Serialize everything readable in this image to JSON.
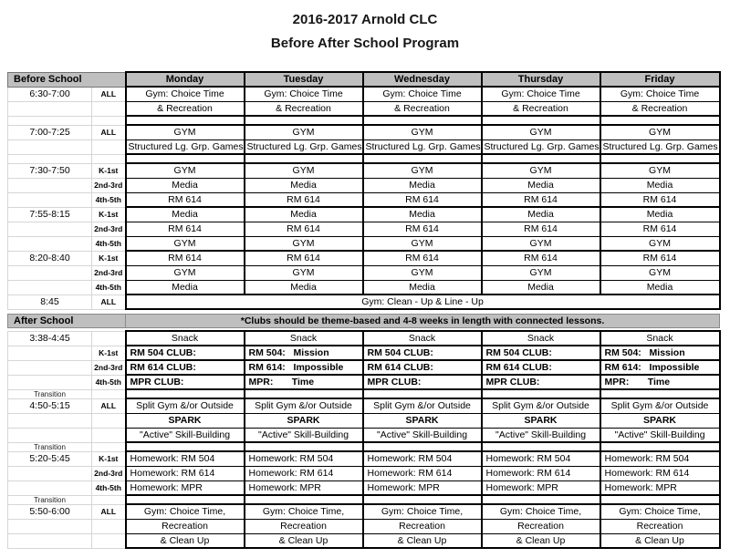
{
  "page": {
    "title_line1": "2016-2017 Arnold CLC",
    "title_line2": "Before After School Program"
  },
  "colors": {
    "header_bg": "#bfbfbf",
    "band_bg": "#bfbfbf",
    "grid_light": "#d6d6d6",
    "block_border": "#000000",
    "text": "#000000"
  },
  "schedule": {
    "days": [
      "Monday",
      "Tuesday",
      "Wednesday",
      "Thursday",
      "Friday"
    ],
    "section_before": "Before School",
    "section_after": "After School",
    "clubs_note": "*Clubs should be theme-based and 4-8 weeks in length with connected lessons.",
    "rows": [
      {
        "type": "header"
      },
      {
        "type": "row",
        "time": "6:30-7:00",
        "group": "ALL",
        "all": "Gym: Choice Time",
        "topB": true
      },
      {
        "type": "row",
        "all": "& Recreation",
        "botB": true
      },
      {
        "type": "thin"
      },
      {
        "type": "row",
        "time": "7:00-7:25",
        "group": "ALL",
        "all": "GYM",
        "topB": true
      },
      {
        "type": "row",
        "all": "Structured Lg. Grp. Games",
        "botB": true
      },
      {
        "type": "thin"
      },
      {
        "type": "row",
        "time": "7:30-7:50",
        "group": "K-1st",
        "all": "GYM",
        "topB": true
      },
      {
        "type": "row",
        "group": "2nd-3rd",
        "all": "Media"
      },
      {
        "type": "row",
        "group": "4th-5th",
        "all": "RM 614",
        "botB": true
      },
      {
        "type": "row",
        "time": "7:55-8:15",
        "group": "K-1st",
        "all": "Media",
        "topB": true
      },
      {
        "type": "row",
        "group": "2nd-3rd",
        "all": "RM 614"
      },
      {
        "type": "row",
        "group": "4th-5th",
        "all": "GYM",
        "botB": true
      },
      {
        "type": "row",
        "time": "8:20-8:40",
        "group": "K-1st",
        "all": "RM 614",
        "topB": true
      },
      {
        "type": "row",
        "group": "2nd-3rd",
        "all": "GYM"
      },
      {
        "type": "row",
        "group": "4th-5th",
        "all": "Media",
        "botB": true
      },
      {
        "type": "span",
        "time": "8:45",
        "group": "ALL",
        "all": "Gym: Clean - Up & Line - Up"
      },
      {
        "type": "gap",
        "h": 5
      },
      {
        "type": "band"
      },
      {
        "type": "gap",
        "h": 4
      },
      {
        "type": "row",
        "time": "3:38-4:45",
        "all": "Snack",
        "topB": true,
        "botB": true
      },
      {
        "type": "row",
        "group": "K-1st",
        "cells": [
          "RM 504 CLUB:",
          "RM 504:   Mission",
          "RM 504 CLUB:",
          "RM 504 CLUB:",
          "RM 504:   Mission"
        ],
        "bold": true,
        "left": true,
        "topB": true,
        "botB": true
      },
      {
        "type": "row",
        "group": "2nd-3rd",
        "cells": [
          "RM 614 CLUB:",
          "RM 614:   Impossible",
          "RM 614 CLUB:",
          "RM 614 CLUB:",
          "RM 614:   Impossible"
        ],
        "bold": true,
        "left": true,
        "topB": true,
        "botB": true
      },
      {
        "type": "row",
        "group": "4th-5th",
        "cells": [
          "MPR CLUB:",
          "MPR:       Time",
          "MPR CLUB:",
          "MPR CLUB:",
          "MPR:       Time"
        ],
        "bold": true,
        "left": true,
        "topB": true,
        "botB": true
      },
      {
        "type": "thin",
        "label": "Transition"
      },
      {
        "type": "row",
        "time": "4:50-5:15",
        "group": "ALL",
        "all": "Split Gym &/or Outside",
        "topB": true
      },
      {
        "type": "row",
        "all": "SPARK",
        "bold": true
      },
      {
        "type": "row",
        "all": "\"Active\" Skill-Building",
        "botB": true
      },
      {
        "type": "thin",
        "label": "Transition"
      },
      {
        "type": "row",
        "time": "5:20-5:45",
        "group": "K-1st",
        "all": "Homework: RM 504",
        "left": true,
        "topB": true
      },
      {
        "type": "row",
        "group": "2nd-3rd",
        "all": "Homework: RM 614",
        "left": true
      },
      {
        "type": "row",
        "group": "4th-5th",
        "all": "Homework: MPR",
        "left": true,
        "botB": true
      },
      {
        "type": "thin",
        "label": "Transition"
      },
      {
        "type": "row",
        "time": "5:50-6:00",
        "group": "ALL",
        "all": "Gym: Choice Time,",
        "topB": true
      },
      {
        "type": "row",
        "all": "Recreation"
      },
      {
        "type": "row",
        "all": "& Clean Up",
        "botB": true
      }
    ]
  }
}
